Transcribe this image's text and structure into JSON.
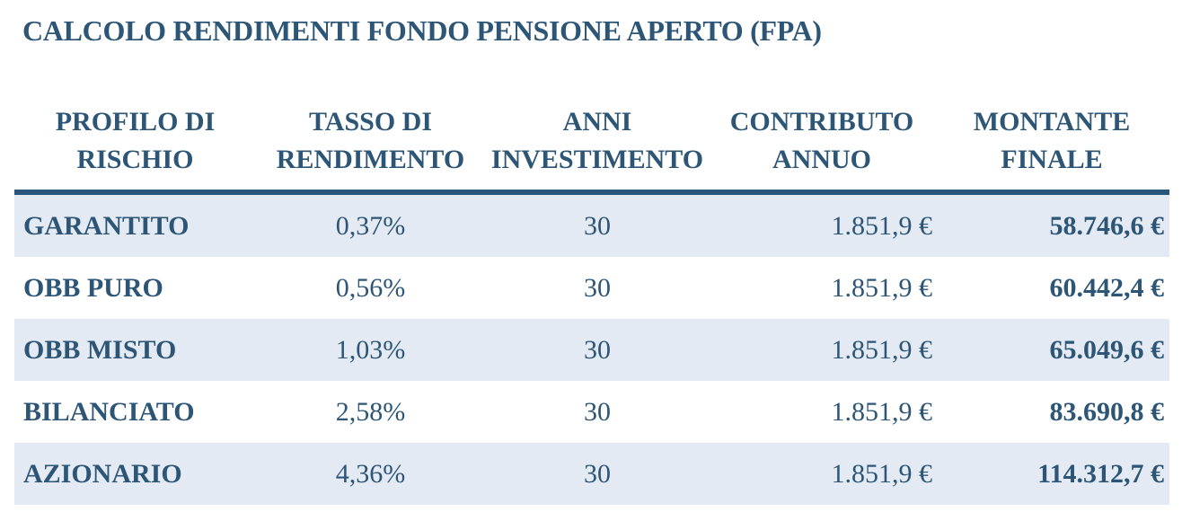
{
  "title": "CALCOLO RENDIMENTI FONDO PENSIONE APERTO (FPA)",
  "colors": {
    "text_blue": "#2d5676",
    "rule_blue": "#2a567e",
    "row_shade": "#e4eaf4",
    "row_plain": "#ffffff",
    "background": "#ffffff"
  },
  "table": {
    "columns": [
      {
        "key": "profilo",
        "label": "PROFILO DI RISCHIO"
      },
      {
        "key": "tasso",
        "label": "TASSO DI RENDIMENTO"
      },
      {
        "key": "anni",
        "label": "ANNI INVESTIMENTO"
      },
      {
        "key": "contributo",
        "label": "CONTRIBUTO ANNUO"
      },
      {
        "key": "montante",
        "label": "MONTANTE FINALE"
      }
    ],
    "rows": [
      {
        "profilo": "GARANTITO",
        "tasso": "0,37%",
        "anni": "30",
        "contributo": "1.851,9 €",
        "montante": "58.746,6 €"
      },
      {
        "profilo": "OBB PURO",
        "tasso": "0,56%",
        "anni": "30",
        "contributo": "1.851,9 €",
        "montante": "60.442,4 €"
      },
      {
        "profilo": "OBB MISTO",
        "tasso": "1,03%",
        "anni": "30",
        "contributo": "1.851,9 €",
        "montante": "65.049,6 €"
      },
      {
        "profilo": "BILANCIATO",
        "tasso": "2,58%",
        "anni": "30",
        "contributo": "1.851,9 €",
        "montante": "83.690,8 €"
      },
      {
        "profilo": "AZIONARIO",
        "tasso": "4,36%",
        "anni": "30",
        "contributo": "1.851,9 €",
        "montante": "114.312,7 €"
      }
    ]
  }
}
